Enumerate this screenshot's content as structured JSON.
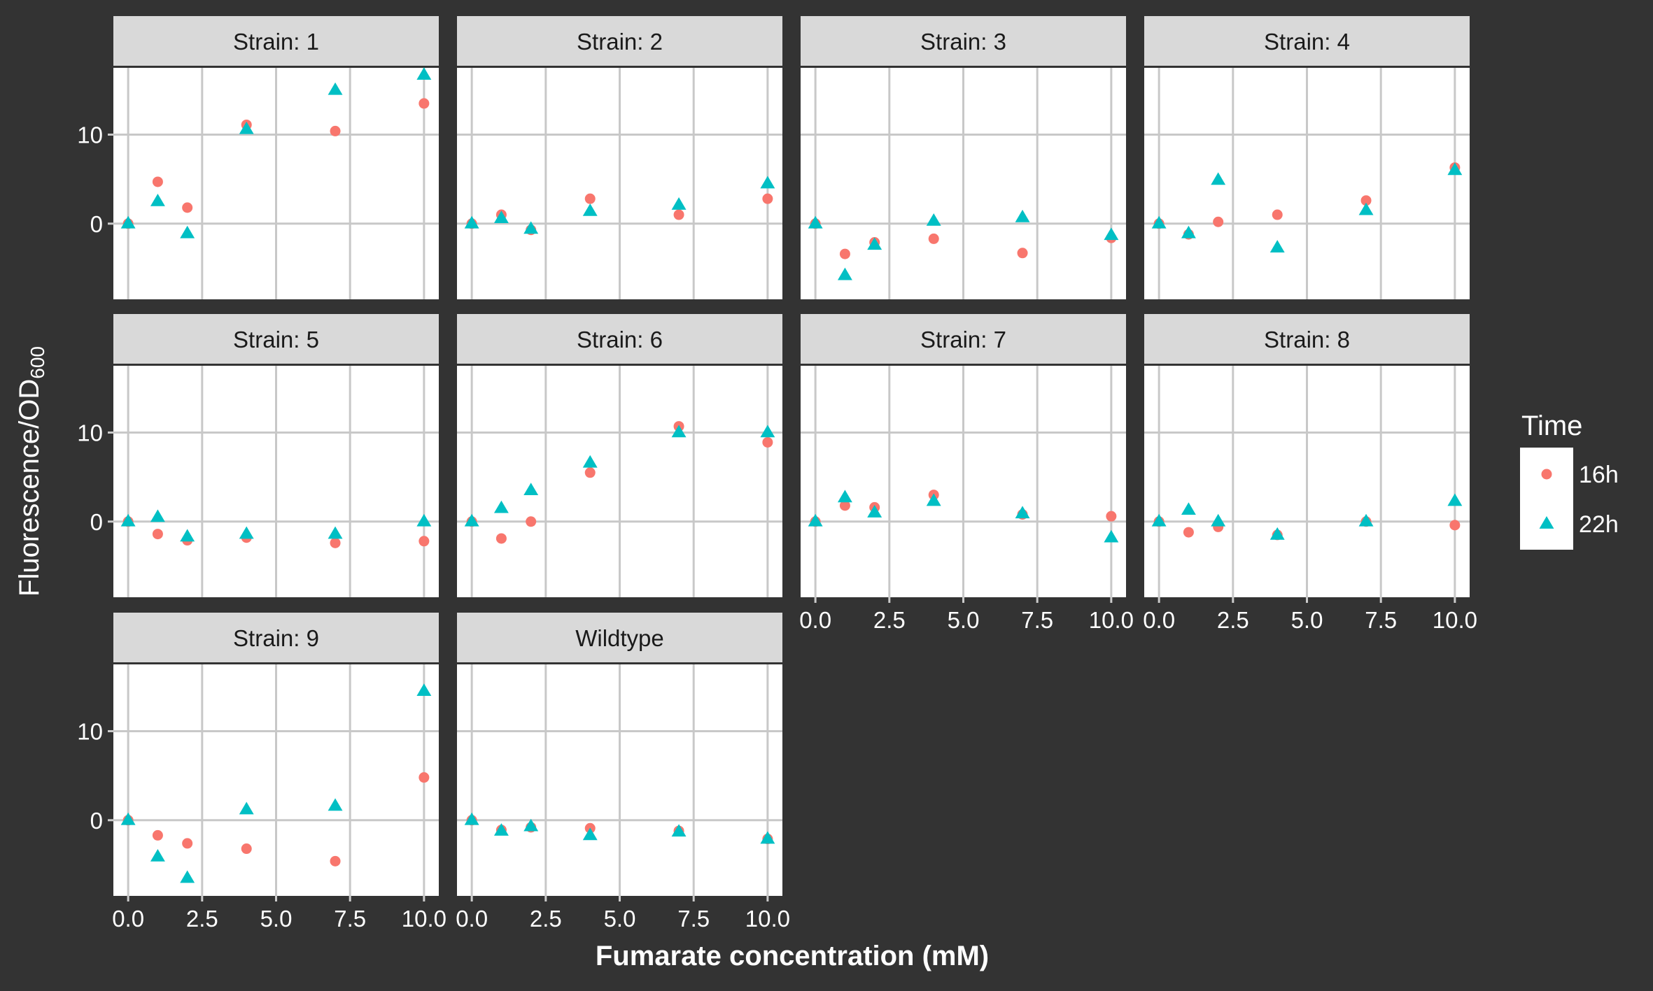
{
  "chart_data": {
    "type": "scatter",
    "xlabel": "Fumarate concentration (mM)",
    "ylabel_main": "Fluorescence/OD",
    "ylabel_subscript": "600",
    "xlim": [
      -0.5,
      10.5
    ],
    "ylim": [
      -8.5,
      17.5
    ],
    "x_ticks": [
      0,
      2.5,
      5,
      7.5,
      10
    ],
    "x_tick_labels": [
      "0.0",
      "2.5",
      "5.0",
      "7.5",
      "10.0"
    ],
    "y_ticks": [
      0,
      10
    ],
    "y_tick_labels": [
      "0",
      "10"
    ],
    "grid": true,
    "legend": {
      "title": "Time",
      "position": "right",
      "entries": [
        {
          "label": "16h",
          "shape": "circle",
          "color": "#F8766D"
        },
        {
          "label": "22h",
          "shape": "triangle",
          "color": "#00BFC4"
        }
      ]
    },
    "x": [
      0,
      1,
      2,
      4,
      7,
      10
    ],
    "panels": [
      {
        "label": "Strain: 1",
        "series": [
          {
            "name": "16h",
            "values": [
              0,
              4.7,
              1.8,
              11.1,
              10.4,
              13.5
            ]
          },
          {
            "name": "22h",
            "values": [
              0,
              2.5,
              -1.1,
              10.6,
              15.0,
              16.7
            ]
          }
        ]
      },
      {
        "label": "Strain: 2",
        "series": [
          {
            "name": "16h",
            "values": [
              0,
              1.0,
              -0.7,
              2.8,
              1.0,
              2.8
            ]
          },
          {
            "name": "22h",
            "values": [
              0,
              0.6,
              -0.6,
              1.4,
              2.1,
              4.5
            ]
          }
        ]
      },
      {
        "label": "Strain: 3",
        "series": [
          {
            "name": "16h",
            "values": [
              0,
              -3.4,
              -2.1,
              -1.7,
              -3.3,
              -1.6
            ]
          },
          {
            "name": "22h",
            "values": [
              0,
              -5.8,
              -2.4,
              0.3,
              0.7,
              -1.3
            ]
          }
        ]
      },
      {
        "label": "Strain: 4",
        "series": [
          {
            "name": "16h",
            "values": [
              0,
              -1.2,
              0.2,
              1.0,
              2.6,
              6.3
            ]
          },
          {
            "name": "22h",
            "values": [
              0,
              -1.1,
              4.9,
              -2.7,
              1.5,
              6.0
            ]
          }
        ]
      },
      {
        "label": "Strain: 5",
        "series": [
          {
            "name": "16h",
            "values": [
              0,
              -1.4,
              -2.1,
              -1.8,
              -2.4,
              -2.2
            ]
          },
          {
            "name": "22h",
            "values": [
              0,
              0.5,
              -1.7,
              -1.4,
              -1.4,
              0
            ]
          }
        ]
      },
      {
        "label": "Strain: 6",
        "series": [
          {
            "name": "16h",
            "values": [
              0,
              -1.9,
              0,
              5.5,
              10.7,
              8.9
            ]
          },
          {
            "name": "22h",
            "values": [
              0,
              1.5,
              3.5,
              6.6,
              10.0,
              10.0
            ]
          }
        ]
      },
      {
        "label": "Strain: 7",
        "series": [
          {
            "name": "16h",
            "values": [
              0,
              1.8,
              1.6,
              3.0,
              0.8,
              0.6
            ]
          },
          {
            "name": "22h",
            "values": [
              0,
              2.7,
              1.0,
              2.3,
              0.9,
              -1.8
            ]
          }
        ]
      },
      {
        "label": "Strain: 8",
        "series": [
          {
            "name": "16h",
            "values": [
              0,
              -1.2,
              -0.6,
              -1.5,
              0,
              -0.4
            ]
          },
          {
            "name": "22h",
            "values": [
              0,
              1.3,
              0,
              -1.5,
              0,
              2.3
            ]
          }
        ]
      },
      {
        "label": "Strain: 9",
        "series": [
          {
            "name": "16h",
            "values": [
              0,
              -1.7,
              -2.6,
              -3.2,
              -4.6,
              4.8
            ]
          },
          {
            "name": "22h",
            "values": [
              0,
              -4.1,
              -6.5,
              1.2,
              1.6,
              14.5
            ]
          }
        ]
      },
      {
        "label": "Wildtype",
        "series": [
          {
            "name": "16h",
            "values": [
              0,
              -1.1,
              -0.8,
              -0.9,
              -1.2,
              -2.1
            ]
          },
          {
            "name": "22h",
            "values": [
              0,
              -1.2,
              -0.7,
              -1.7,
              -1.3,
              -2.1
            ]
          }
        ]
      }
    ]
  }
}
